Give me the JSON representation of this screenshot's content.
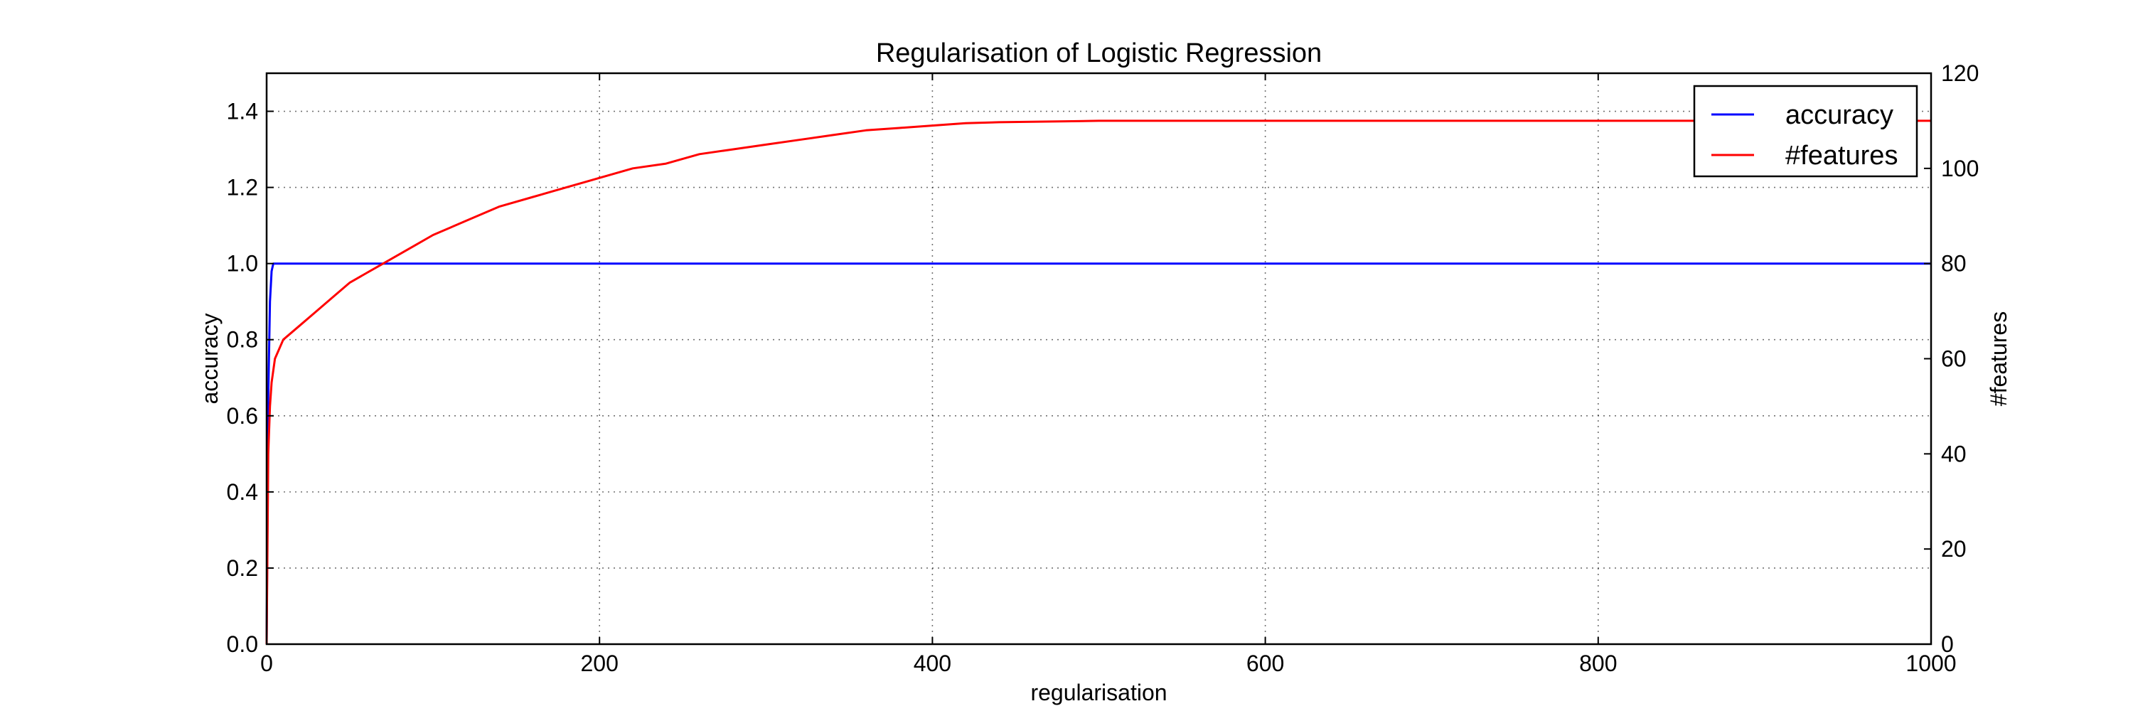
{
  "chart_data": {
    "type": "line",
    "title": "Regularisation of Logistic Regression",
    "xlabel": "regularisation",
    "ylabel": "accuracy",
    "y2label": "#features",
    "xlim": [
      0,
      1000
    ],
    "ylim": [
      0.0,
      1.5
    ],
    "y2lim": [
      0,
      120
    ],
    "xticks": [
      "0",
      "200",
      "400",
      "600",
      "800",
      "1000"
    ],
    "yticks": [
      "0.0",
      "0.2",
      "0.4",
      "0.6",
      "0.8",
      "1.0",
      "1.2",
      "1.4"
    ],
    "y2ticks": [
      "0",
      "20",
      "40",
      "60",
      "80",
      "100",
      "120"
    ],
    "grid": true,
    "legend": "top-right",
    "series": [
      {
        "name": "accuracy",
        "axis": "left",
        "color": "#0000ff",
        "x": [
          0,
          1,
          2,
          3,
          4,
          5,
          10,
          50,
          100,
          200,
          300,
          400,
          500,
          600,
          700,
          800,
          900,
          1000
        ],
        "y": [
          0.0,
          0.65,
          0.9,
          0.98,
          1.0,
          1.0,
          1.0,
          1.0,
          1.0,
          1.0,
          1.0,
          1.0,
          1.0,
          1.0,
          1.0,
          1.0,
          1.0,
          1.0
        ]
      },
      {
        "name": "#features",
        "axis": "right",
        "color": "#ff0000",
        "x": [
          0,
          1,
          2,
          3,
          5,
          10,
          20,
          30,
          40,
          50,
          60,
          70,
          80,
          90,
          100,
          120,
          140,
          160,
          180,
          200,
          220,
          240,
          260,
          280,
          300,
          320,
          340,
          360,
          380,
          400,
          420,
          440,
          460,
          480,
          500,
          550,
          600,
          650,
          700,
          750,
          800,
          850,
          900,
          950,
          1000
        ],
        "y": [
          0,
          40,
          50,
          55,
          60,
          64,
          67,
          70,
          73,
          76,
          78,
          80,
          82,
          84,
          86,
          89,
          92,
          94,
          96,
          98,
          100,
          101,
          103,
          104,
          105,
          106,
          107,
          108,
          108.5,
          109,
          109.5,
          109.7,
          109.8,
          109.9,
          110,
          110,
          110,
          110,
          110,
          110,
          110,
          110,
          110,
          110,
          110
        ]
      }
    ]
  }
}
